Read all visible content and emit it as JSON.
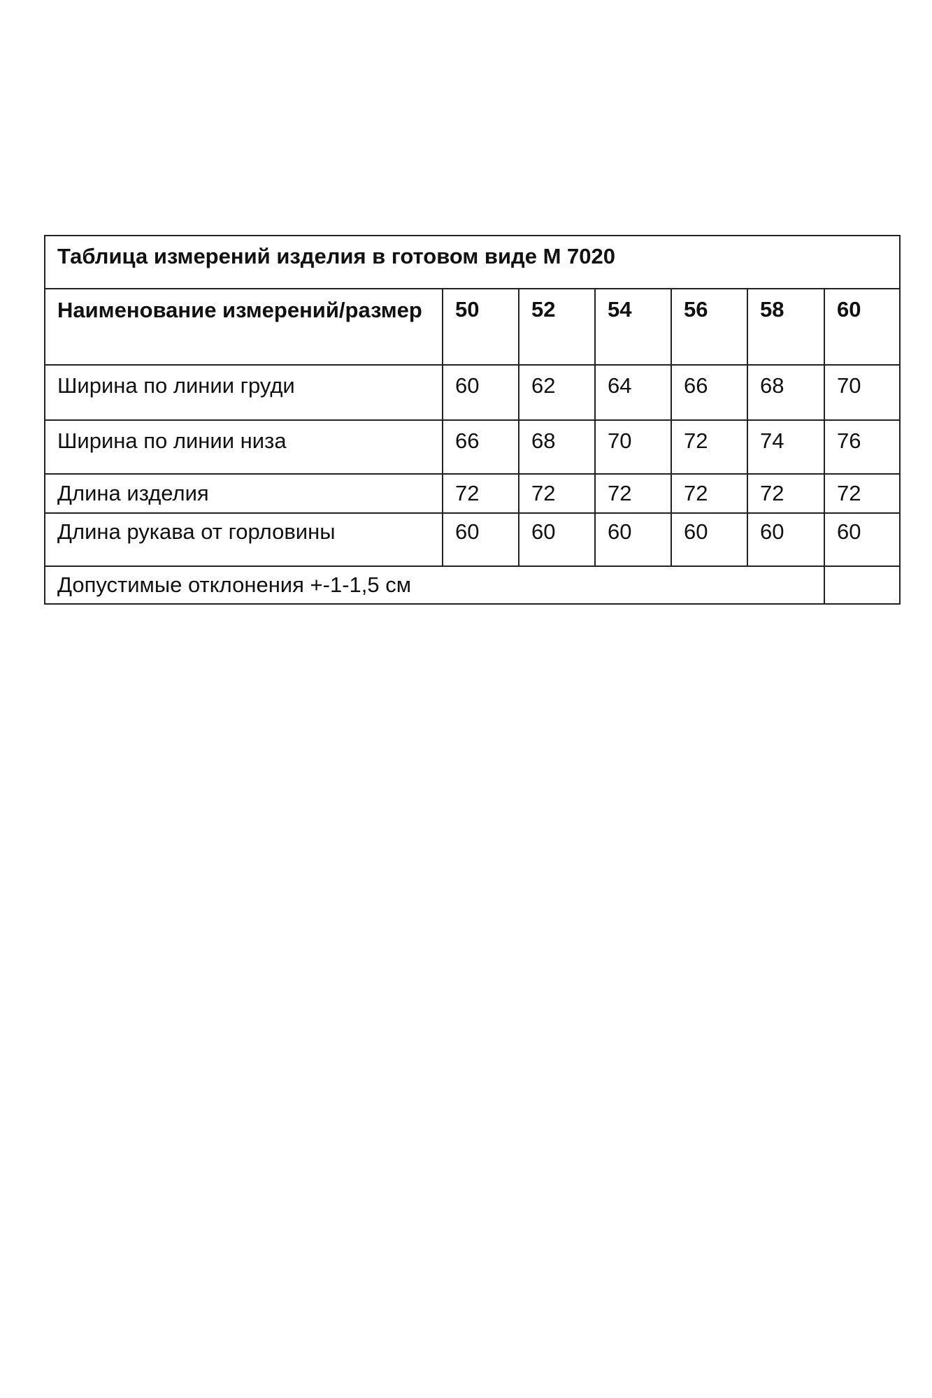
{
  "table": {
    "title": "Таблица измерений изделия в готовом виде М 7020",
    "header_label": "Наименование измерений/размер",
    "sizes": [
      "50",
      "52",
      "54",
      "56",
      "58",
      "60"
    ],
    "rows": [
      {
        "label": "Ширина по линии груди",
        "values": [
          "60",
          "62",
          "64",
          "66",
          "68",
          "70"
        ]
      },
      {
        "label": "Ширина по линии низа",
        "values": [
          "66",
          "68",
          "70",
          "72",
          "74",
          "76"
        ]
      },
      {
        "label": "Длина изделия",
        "values": [
          "72",
          "72",
          "72",
          "72",
          "72",
          "72"
        ]
      },
      {
        "label": "Длина рукава от горловины",
        "values": [
          "60",
          "60",
          "60",
          "60",
          "60",
          "60"
        ]
      }
    ],
    "footer": "Допустимые отклонения +-1-1,5 см"
  }
}
